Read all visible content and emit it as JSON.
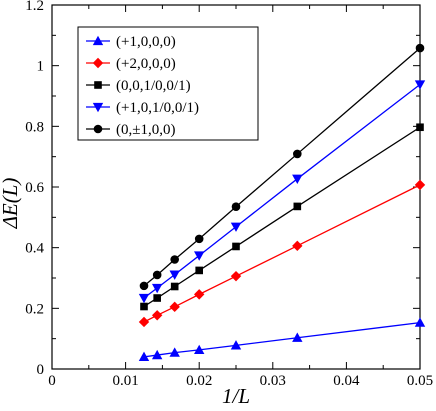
{
  "chart_data": {
    "type": "line",
    "xlabel": "1/L",
    "ylabel": "ΔE(L)",
    "xlim": [
      0,
      0.05
    ],
    "ylim": [
      0,
      1.2
    ],
    "xticks": [
      0,
      0.01,
      0.02,
      0.03,
      0.04,
      0.05
    ],
    "xtick_labels": [
      "0",
      "0.01",
      "0.02",
      "0.03",
      "0.04",
      "0.05"
    ],
    "yticks": [
      0,
      0.2,
      0.4,
      0.6,
      0.8,
      1.0,
      1.2
    ],
    "ytick_labels": [
      "0",
      "0.2",
      "0.4",
      "0.6",
      "0.8",
      "1",
      "1.2"
    ],
    "grid": false,
    "legend_placement": "top-left",
    "x": [
      0.0125,
      0.01429,
      0.01667,
      0.02,
      0.025,
      0.03333,
      0.05
    ],
    "series": [
      {
        "name": "(+1,0,0,0)",
        "color": "#0000ff",
        "marker": "triangle-up",
        "values": [
          0.04,
          0.046,
          0.054,
          0.063,
          0.078,
          0.103,
          0.153
        ]
      },
      {
        "name": "(+2,0,0,0)",
        "color": "#ff0000",
        "marker": "diamond",
        "values": [
          0.155,
          0.177,
          0.205,
          0.246,
          0.306,
          0.406,
          0.607
        ]
      },
      {
        "name": "(0,0,1/0,0/1)",
        "color": "#000000",
        "marker": "square",
        "values": [
          0.206,
          0.234,
          0.272,
          0.325,
          0.404,
          0.536,
          0.797
        ]
      },
      {
        "name": "(+1,0,1/0,0/1)",
        "color": "#0000ff",
        "marker": "triangle-down",
        "values": [
          0.234,
          0.267,
          0.311,
          0.374,
          0.469,
          0.627,
          0.938
        ]
      },
      {
        "name": "(0,±1,0,0)",
        "color": "#000000",
        "marker": "circle",
        "values": [
          0.274,
          0.31,
          0.361,
          0.429,
          0.535,
          0.709,
          1.058
        ]
      }
    ]
  }
}
